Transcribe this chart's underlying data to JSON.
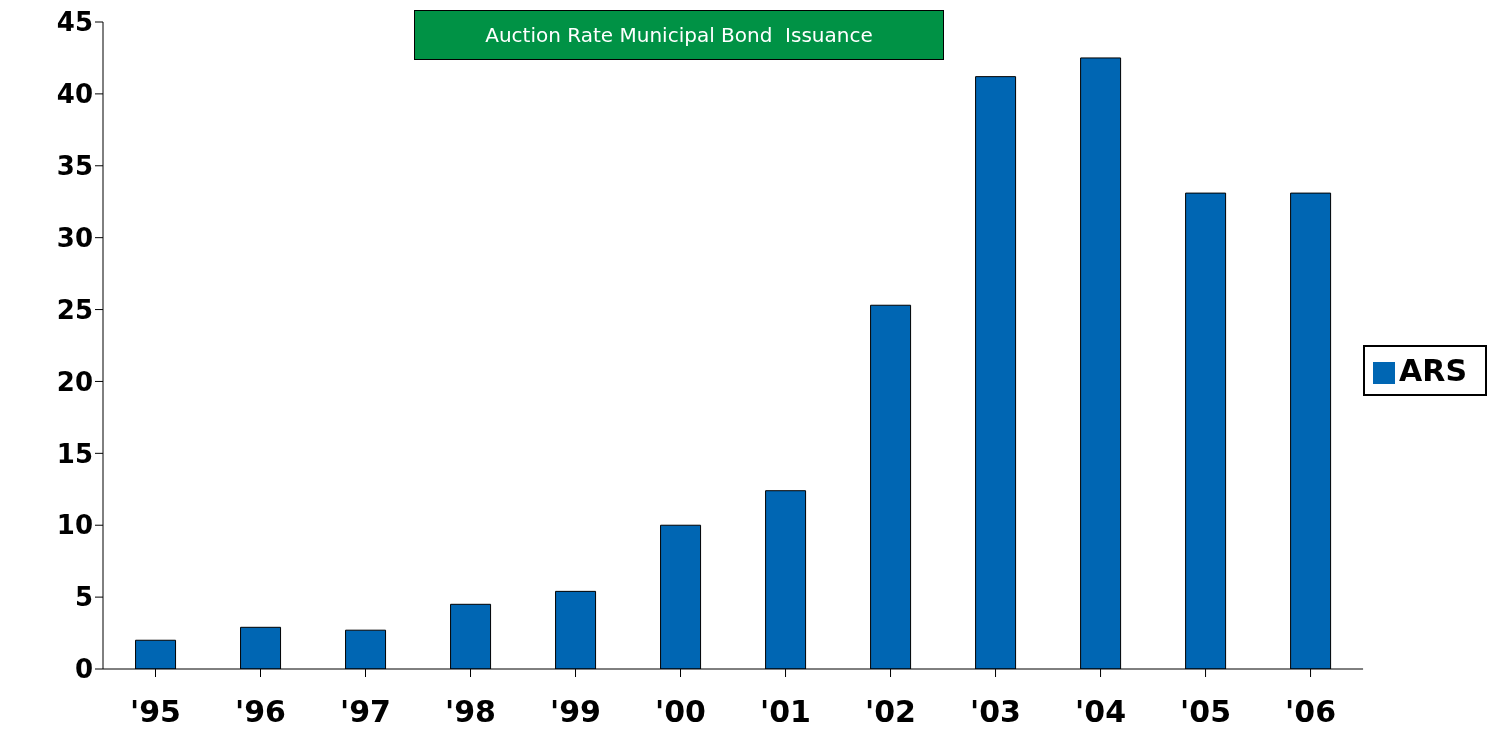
{
  "chart_data": {
    "type": "bar",
    "title": "Auction Rate Municipal Bond  Issuance",
    "categories": [
      "'95",
      "'96",
      "'97",
      "'98",
      "'99",
      "'00",
      "'01",
      "'02",
      "'03",
      "'04",
      "'05",
      "'06"
    ],
    "series": [
      {
        "name": "ARS",
        "color": "#0066b3",
        "values": [
          2.0,
          2.9,
          2.7,
          4.5,
          5.4,
          10.0,
          12.4,
          25.3,
          41.2,
          42.5,
          33.1,
          33.1
        ]
      }
    ],
    "ylim": [
      0,
      45
    ],
    "yticks": [
      0,
      5,
      10,
      15,
      20,
      25,
      30,
      35,
      40,
      45
    ],
    "grid": false,
    "legend": "right"
  }
}
